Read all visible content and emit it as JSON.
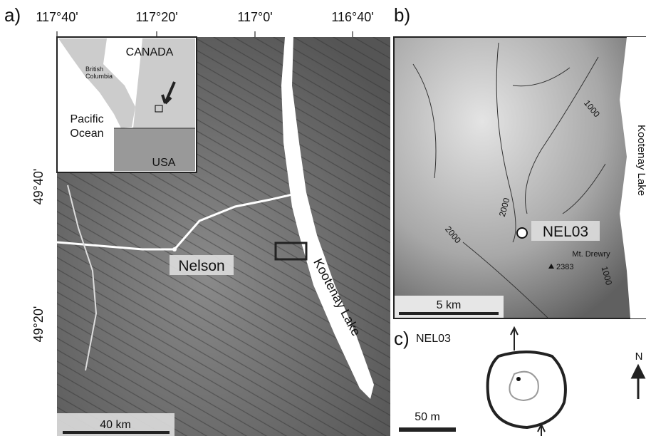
{
  "panel_a": {
    "label": "a)",
    "lon_ticks": [
      "117°40'",
      "117°20'",
      "117°0'",
      "116°40'"
    ],
    "lat_ticks": [
      "49°40'",
      "49°20'"
    ],
    "inset": {
      "country_north": "CANADA",
      "province": [
        "British",
        "Columbia"
      ],
      "ocean": [
        "Pacific",
        "Ocean"
      ],
      "country_south": "USA"
    },
    "town": "Nelson",
    "lake": "Kootenay Lake",
    "scale": "40 km"
  },
  "panel_b": {
    "label": "b)",
    "contours": [
      "1000",
      "2000",
      "2000",
      "1000"
    ],
    "lake": "Kootenay Lake",
    "site": "NEL03",
    "peak": "Mt. Drewry",
    "peak_elevation": "2383",
    "scale": "5 km"
  },
  "panel_c": {
    "label": "c)",
    "site": "NEL03",
    "scale": "50 m",
    "north": "N"
  }
}
